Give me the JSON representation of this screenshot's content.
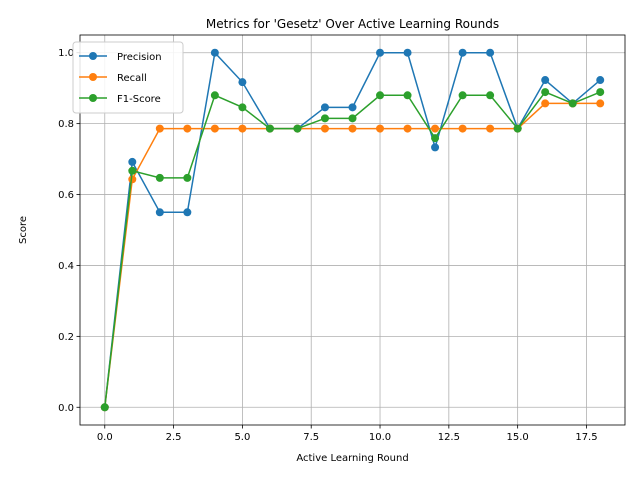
{
  "chart_data": {
    "type": "line",
    "title": "Metrics for 'Gesetz' Over Active Learning Rounds",
    "xlabel": "Active Learning Round",
    "ylabel": "Score",
    "xlim": [
      -0.9,
      18.9
    ],
    "ylim": [
      -0.05,
      1.05
    ],
    "x_ticks": [
      0.0,
      2.5,
      5.0,
      7.5,
      10.0,
      12.5,
      15.0,
      17.5
    ],
    "x_tick_labels": [
      "0.0",
      "2.5",
      "5.0",
      "7.5",
      "10.0",
      "12.5",
      "15.0",
      "17.5"
    ],
    "y_ticks": [
      0.0,
      0.2,
      0.4,
      0.6,
      0.8,
      1.0
    ],
    "y_tick_labels": [
      "0.0",
      "0.2",
      "0.4",
      "0.6",
      "0.8",
      "1.0"
    ],
    "grid": true,
    "legend_position": "upper-left",
    "x": [
      0,
      1,
      2,
      3,
      4,
      5,
      6,
      7,
      8,
      9,
      10,
      11,
      12,
      13,
      14,
      15,
      16,
      17,
      18
    ],
    "series": [
      {
        "name": "Precision",
        "color": "#1f77b4",
        "values": [
          0.0,
          0.692,
          0.55,
          0.55,
          1.0,
          0.917,
          0.786,
          0.786,
          0.846,
          0.846,
          1.0,
          1.0,
          0.733,
          1.0,
          1.0,
          0.786,
          0.923,
          0.857,
          0.923
        ]
      },
      {
        "name": "Recall",
        "color": "#ff7f0e",
        "values": [
          0.0,
          0.643,
          0.786,
          0.786,
          0.786,
          0.786,
          0.786,
          0.786,
          0.786,
          0.786,
          0.786,
          0.786,
          0.786,
          0.786,
          0.786,
          0.786,
          0.857,
          0.857,
          0.857
        ]
      },
      {
        "name": "F1-Score",
        "color": "#2ca02c",
        "values": [
          0.0,
          0.667,
          0.647,
          0.647,
          0.88,
          0.846,
          0.786,
          0.786,
          0.815,
          0.815,
          0.88,
          0.88,
          0.759,
          0.88,
          0.88,
          0.786,
          0.889,
          0.857,
          0.889
        ]
      }
    ]
  }
}
